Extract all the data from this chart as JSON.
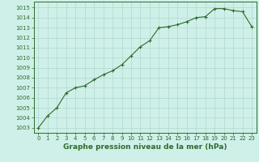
{
  "x": [
    0,
    1,
    2,
    3,
    4,
    5,
    6,
    7,
    8,
    9,
    10,
    11,
    12,
    13,
    14,
    15,
    16,
    17,
    18,
    19,
    20,
    21,
    22,
    23
  ],
  "y": [
    1003.0,
    1004.2,
    1005.0,
    1006.5,
    1007.0,
    1007.2,
    1007.8,
    1008.3,
    1008.7,
    1009.3,
    1010.2,
    1011.1,
    1011.7,
    1013.0,
    1013.1,
    1013.3,
    1013.6,
    1014.0,
    1014.1,
    1014.9,
    1014.9,
    1014.7,
    1014.6,
    1013.1
  ],
  "line_color": "#2d6a2d",
  "marker": "+",
  "bg_color": "#cff0e8",
  "grid_color": "#b0d8ce",
  "xlabel": "Graphe pression niveau de la mer (hPa)",
  "xlabel_fontsize": 6.5,
  "ylabel_ticks": [
    1003,
    1004,
    1005,
    1006,
    1007,
    1008,
    1009,
    1010,
    1011,
    1012,
    1013,
    1014,
    1015
  ],
  "ylim": [
    1002.5,
    1015.6
  ],
  "xlim": [
    -0.5,
    23.5
  ],
  "xticks": [
    0,
    1,
    2,
    3,
    4,
    5,
    6,
    7,
    8,
    9,
    10,
    11,
    12,
    13,
    14,
    15,
    16,
    17,
    18,
    19,
    20,
    21,
    22,
    23
  ],
  "tick_fontsize": 5.0,
  "line_width": 0.8,
  "marker_size": 3.5,
  "marker_edge_width": 0.8
}
